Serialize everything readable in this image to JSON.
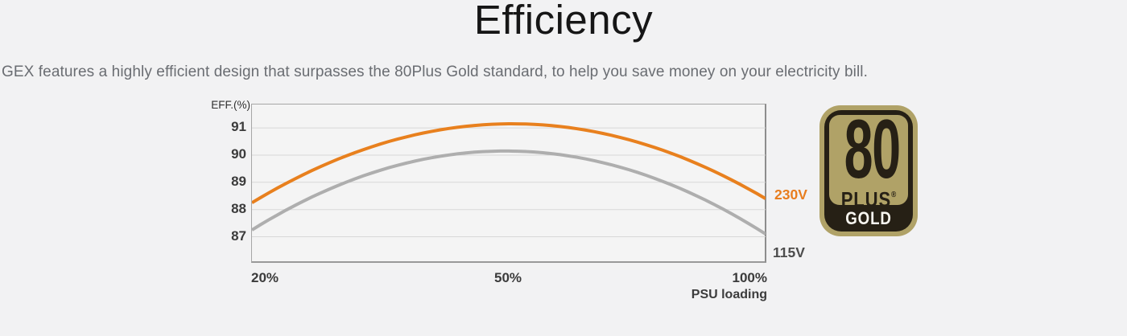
{
  "page": {
    "title": "Efficiency",
    "subtitle": "GEX features a highly efficient design that surpasses the 80Plus Gold standard, to help you save money on your electricity bill.",
    "background_color": "#f2f2f3"
  },
  "chart_data": {
    "type": "line",
    "title": "",
    "xlabel": "PSU loading",
    "ylabel": "EFF.(%)",
    "x_tick_labels": [
      "20%",
      "50%",
      "100%"
    ],
    "x_loading_percent": [
      20,
      50,
      100
    ],
    "x_axis_note": "ticks equally spaced across plot width",
    "y_ticks": [
      91,
      90,
      89,
      88,
      87
    ],
    "ylim": [
      86.07,
      91.86
    ],
    "grid": "horizontal",
    "plot_bg": "#f4f4f4",
    "gridline_color": "#d8d8d8",
    "series": [
      {
        "name": "230V",
        "color": "#e8801e",
        "label_color": "#e87d1e",
        "values_eff_percent": [
          88.25,
          91.15,
          88.4
        ]
      },
      {
        "name": "115V",
        "color": "#aeaeae",
        "label_color": "#4c4c4c",
        "values_eff_percent": [
          87.25,
          90.15,
          87.1
        ]
      }
    ]
  },
  "badge": {
    "number": "80",
    "name": "PLUS",
    "registered_mark": "®",
    "tier": "GOLD",
    "gold_color": "#b0a267",
    "dark_color": "#262015",
    "tier_text_color": "#f7f5ef"
  }
}
